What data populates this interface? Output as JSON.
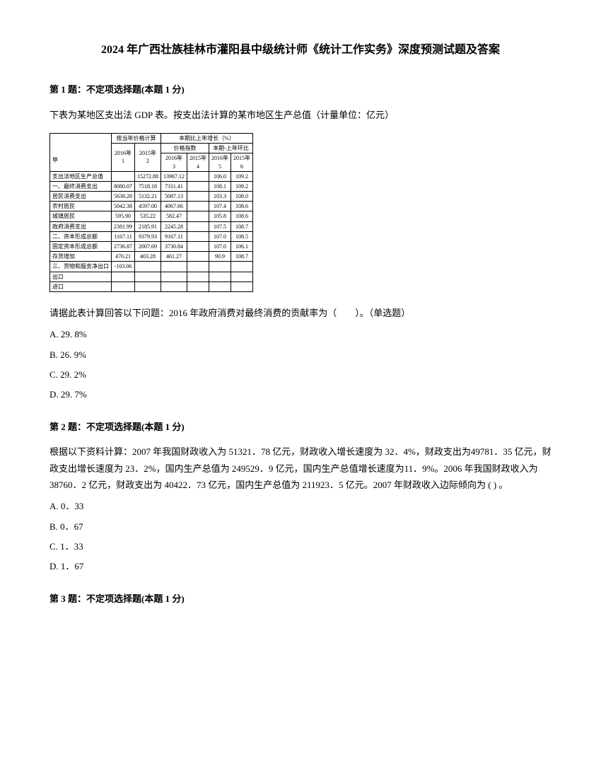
{
  "title": "2024 年广西壮族桂林市灌阳县中级统计师《统计工作实务》深度预测试题及答案",
  "q1": {
    "header": "第 1 题：不定项选择题(本题 1 分)",
    "text1": "下表为某地区支出法 GDP 表。按支出法计算的某市地区生产总值（计量单位：亿元）",
    "text2": "请据此表计算回答以下问题：2016 年政府消费对最终消费的贡献率为（　　）。（单选题）",
    "options": [
      "A. 29. 8%",
      "B. 26. 9%",
      "C. 29. 2%",
      "D. 29. 7%"
    ]
  },
  "q2": {
    "header": "第 2 题：不定项选择题(本题 1 分)",
    "text": "根据以下资料计算：2007 年我国财政收入为 51321．78 亿元，财政收入增长速度为 32．4%，财政支出为49781．35 亿元，财政支出增长速度为 23．2%，国内生产总值为 249529．9 亿元，国内生产总值增长速度为11．9%。2006 年我国财政收入为 38760．2 亿元，财政支出为 40422．73 亿元，国内生产总值为 211923．5 亿元。2007 年财政收入边际倾向为 ( ) 。",
    "options": [
      "A. 0．33",
      "B. 0．67",
      "C. 1．33",
      "D. 1．67"
    ]
  },
  "q3": {
    "header": "第 3 题：不定项选择题(本题 1 分)"
  },
  "table": {
    "headers": {
      "col1_empty": "",
      "group1": "按当年价格计算",
      "group2": "本期比上年增长（%）",
      "sub_g2a": "价格指数",
      "sub_g2b": "本期-上年环比",
      "y2016": "2016年",
      "y2015": "2015年",
      "c1": "1",
      "c2": "2",
      "c3": "3",
      "c4": "4",
      "c5": "5",
      "c6": "6"
    },
    "rows": [
      {
        "label": "支出法地区生产总值",
        "v": [
          "",
          "15272.88",
          "13967.12",
          "",
          "106.0",
          "109.2"
        ]
      },
      {
        "label": "一、最终消费支出",
        "v": [
          "8080.07",
          "7518.18",
          "7311.41",
          "",
          "108.1",
          "109.2"
        ]
      },
      {
        "label": "居民消费支出",
        "v": [
          "5638.28",
          "5132.21",
          "5087.13",
          "",
          "103.3",
          "108.0"
        ]
      },
      {
        "label": "农村居民",
        "v": [
          "5042.38",
          "4597.00",
          "4067.66",
          "",
          "107.4",
          "108.6"
        ]
      },
      {
        "label": "城镇居民",
        "v": [
          "595.90",
          "535.22",
          "582.47",
          "",
          "105.8",
          "108.6"
        ]
      },
      {
        "label": "政府消费支出",
        "v": [
          "2381.99",
          "2185.91",
          "2245.28",
          "",
          "107.5",
          "108.7"
        ]
      },
      {
        "label": "二、资本形成总额",
        "v": [
          "1167.11",
          "9379.93",
          "9167.11",
          "",
          "107.0",
          "108.5"
        ]
      },
      {
        "label": "固定资本形成总额",
        "v": [
          "2736.87",
          "2007.69",
          "3730.84",
          "",
          "107.0",
          "106.1"
        ]
      },
      {
        "label": "存货增加",
        "v": [
          "470.21",
          "403.28",
          "461.27",
          "",
          "90.9",
          "108.7"
        ]
      },
      {
        "label": "三、货物和服务净出口",
        "v": [
          "-103.06",
          "",
          "",
          "",
          "",
          ""
        ]
      },
      {
        "label": "出口",
        "v": [
          "",
          "",
          "",
          "",
          "",
          ""
        ]
      },
      {
        "label": "进口",
        "v": [
          "",
          "",
          "",
          "",
          "",
          ""
        ]
      }
    ]
  }
}
